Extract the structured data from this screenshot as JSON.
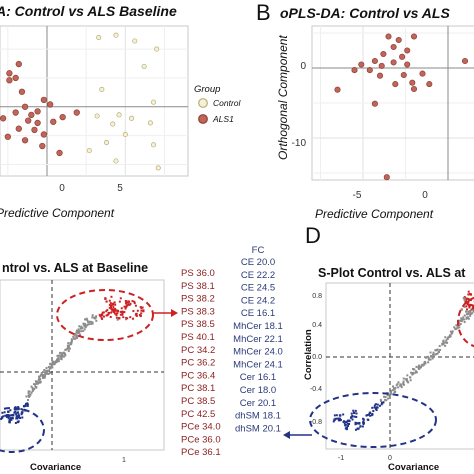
{
  "panels": {
    "A": {
      "letter": "",
      "title": "A: Control vs ALS Baseline",
      "xlabel": "Predictive Component",
      "xticks": [
        "0",
        "5"
      ]
    },
    "B": {
      "letter": "B",
      "title": "oPLS-DA: Control vs ALS",
      "xlabel": "Predictive Component",
      "ylabel": "Orthogonal Component",
      "xticks": [
        "-5",
        "0"
      ],
      "yticks": [
        "0",
        "-10"
      ]
    },
    "C": {
      "title": "ntrol vs. ALS at Baseline",
      "xlabel": "Covariance",
      "xticks": [
        "1"
      ]
    },
    "D": {
      "letter": "D",
      "title": "S-Plot Control vs. ALS at",
      "xlabel": "Covariance",
      "ylabel": "Correlation",
      "xticks": [
        "-1",
        "0"
      ],
      "yticks": [
        "0.8",
        "0.4",
        "0.0",
        "-0.4",
        "-0.8"
      ]
    }
  },
  "legend": {
    "title": "Group",
    "items": [
      "Control",
      "ALS1"
    ]
  },
  "colors": {
    "control_fill": "#f4f1da",
    "control_stroke": "#b8ad72",
    "als_fill": "#c0655a",
    "als_stroke": "#8e3f37",
    "red_accent": "#cc2222",
    "blue_accent": "#223388",
    "splot_gray": "#8c8c8c"
  },
  "lipids": {
    "fc_header": "FC",
    "left": [
      "PS 36.0",
      "PS 38.1",
      "PS 38.2",
      "PS 38.3",
      "PS 38.5",
      "PS 40.1",
      "PC 34.2",
      "PC 36.2",
      "PC 36.4",
      "PC 38.1",
      "PC 38.5",
      "PC 42.5",
      "PCe 34.0",
      "PCe 36.0",
      "PCe 36.1"
    ],
    "right": [
      "CE 20.0",
      "CE 22.2",
      "CE 24.5",
      "CE 24.2",
      "CE 16.1",
      "MhCer 18.1",
      "MhCer 22.1",
      "MhCer 24.0",
      "MhCer 24.1",
      "Cer 16.1",
      "Cer 18.0",
      "Cer 20.1",
      "dhSM 18.1",
      "dhSM 20.1"
    ]
  },
  "chart_data": [
    {
      "type": "scatter",
      "title": "A: Control vs ALS Baseline",
      "xlabel": "Predictive Component",
      "ylabel": "",
      "xlim": [
        -3.0,
        9.0
      ],
      "ylim": [
        -6.0,
        7.0
      ],
      "grid": true,
      "legend_position": "right",
      "series": [
        {
          "name": "Control",
          "points": [
            [
              3.3,
              6.0
            ],
            [
              4.4,
              6.2
            ],
            [
              5.6,
              5.7
            ],
            [
              6.2,
              3.5
            ],
            [
              7.0,
              5.0
            ],
            [
              3.5,
              1.5
            ],
            [
              6.8,
              0.4
            ],
            [
              3.2,
              -0.8
            ],
            [
              4.6,
              -0.7
            ],
            [
              4.2,
              -1.5
            ],
            [
              5.4,
              -1.0
            ],
            [
              6.6,
              -1.4
            ],
            [
              5.0,
              -2.4
            ],
            [
              3.8,
              -3.1
            ],
            [
              6.8,
              -3.3
            ],
            [
              2.7,
              -3.8
            ],
            [
              4.4,
              -4.7
            ],
            [
              7.1,
              -5.3
            ]
          ]
        },
        {
          "name": "ALS1",
          "points": [
            [
              -2.4,
              2.9
            ],
            [
              -1.8,
              3.7
            ],
            [
              -2.4,
              2.3
            ],
            [
              -1.6,
              1.3
            ],
            [
              -1.4,
              0.0
            ],
            [
              -2.0,
              -0.5
            ],
            [
              -2.8,
              -1.0
            ],
            [
              -1.0,
              -0.7
            ],
            [
              -0.6,
              -0.4
            ],
            [
              -0.2,
              0.6
            ],
            [
              0.2,
              0.2
            ],
            [
              -1.2,
              -1.2
            ],
            [
              -0.6,
              -1.4
            ],
            [
              -1.8,
              -1.9
            ],
            [
              -0.8,
              -2.0
            ],
            [
              0.4,
              -1.3
            ],
            [
              -0.2,
              -2.4
            ],
            [
              -1.4,
              -2.9
            ],
            [
              -2.0,
              2.5
            ],
            [
              1.0,
              -0.9
            ],
            [
              -2.5,
              -2.6
            ],
            [
              1.9,
              -0.5
            ],
            [
              -0.3,
              -3.4
            ],
            [
              0.8,
              -4.0
            ]
          ]
        }
      ]
    },
    {
      "type": "scatter",
      "title": "oPLS-DA: Control vs ALS",
      "xlabel": "Predictive Component",
      "ylabel": "Orthogonal Component",
      "xlim": [
        -8.0,
        2.0
      ],
      "ylim": [
        -16.0,
        6.0
      ],
      "grid": true,
      "series": [
        {
          "name": "ALS1",
          "points": [
            [
              -3.5,
              4.5
            ],
            [
              -2.9,
              4.0
            ],
            [
              -2.0,
              4.5
            ],
            [
              -3.2,
              3.0
            ],
            [
              -2.4,
              2.5
            ],
            [
              -3.8,
              2.0
            ],
            [
              -2.7,
              1.6
            ],
            [
              -4.3,
              1.0
            ],
            [
              -5.1,
              0.5
            ],
            [
              -3.9,
              0.3
            ],
            [
              -3.2,
              0.8
            ],
            [
              -2.4,
              0.5
            ],
            [
              -5.5,
              -0.3
            ],
            [
              -4.6,
              -0.3
            ],
            [
              -4.0,
              -1.1
            ],
            [
              -2.6,
              -1.0
            ],
            [
              -1.5,
              -0.8
            ],
            [
              -2.1,
              -2.1
            ],
            [
              -3.1,
              -2.3
            ],
            [
              -1.1,
              -2.3
            ],
            [
              -6.5,
              -3.1
            ],
            [
              -4.3,
              -5.1
            ],
            [
              -3.6,
              -15.6
            ],
            [
              -2.0,
              -3.0
            ],
            [
              1.0,
              1.0
            ]
          ]
        }
      ]
    },
    {
      "type": "scatter",
      "title": "ntrol vs. ALS at Baseline",
      "xlabel": "Covariance",
      "ylabel": "",
      "xlim": [
        -0.98,
        1.4
      ],
      "ylim": [
        -1.0,
        1.0
      ],
      "grid": false,
      "series": [
        {
          "name": "",
          "points": [
            [
              -0.95,
              -0.62
            ],
            [
              -0.86,
              -0.55
            ],
            [
              -0.84,
              -0.66
            ],
            [
              -0.79,
              -0.59
            ],
            [
              -0.74,
              -0.52
            ],
            [
              -0.72,
              -0.67
            ],
            [
              -0.66,
              -0.56
            ],
            [
              -0.6,
              -0.46
            ],
            [
              -0.55,
              -0.36
            ],
            [
              -0.5,
              -0.29
            ],
            [
              -0.45,
              -0.22
            ],
            [
              -0.4,
              -0.17
            ],
            [
              -0.35,
              -0.12
            ],
            [
              -0.3,
              -0.07
            ],
            [
              -0.25,
              -0.03
            ],
            [
              -0.2,
              0.01
            ],
            [
              -0.15,
              0.06
            ],
            [
              -0.1,
              0.1
            ],
            [
              -0.05,
              0.14
            ],
            [
              0.0,
              0.19
            ],
            [
              0.05,
              0.25
            ],
            [
              0.1,
              0.31
            ],
            [
              0.15,
              0.38
            ],
            [
              0.2,
              0.43
            ],
            [
              0.25,
              0.46
            ],
            [
              0.3,
              0.51
            ],
            [
              0.4,
              0.55
            ],
            [
              0.5,
              0.59
            ],
            [
              0.6,
              0.61
            ],
            [
              0.65,
              0.71
            ],
            [
              0.7,
              0.64
            ],
            [
              0.8,
              0.62
            ],
            [
              0.9,
              0.71
            ],
            [
              0.55,
              0.78
            ],
            [
              0.75,
              0.55
            ],
            [
              1.0,
              0.6
            ],
            [
              1.1,
              0.64
            ],
            [
              0.85,
              0.75
            ]
          ]
        }
      ]
    },
    {
      "type": "scatter",
      "title": "S-Plot Control vs. ALS at",
      "xlabel": "Covariance",
      "ylabel": "Correlation",
      "xlim": [
        -1.52,
        1.0
      ],
      "ylim": [
        -0.98,
        0.9
      ],
      "grid": false,
      "series": [
        {
          "name": "",
          "points": [
            [
              -1.38,
              -0.65
            ],
            [
              -1.29,
              -0.6
            ],
            [
              -1.18,
              -0.74
            ],
            [
              -1.14,
              -0.66
            ],
            [
              -1.06,
              -0.57
            ],
            [
              -1.0,
              -0.75
            ],
            [
              -0.91,
              -0.68
            ],
            [
              -0.8,
              -0.57
            ],
            [
              -0.7,
              -0.52
            ],
            [
              -0.6,
              -0.46
            ],
            [
              -0.5,
              -0.37
            ],
            [
              -0.4,
              -0.3
            ],
            [
              -0.3,
              -0.25
            ],
            [
              -0.2,
              -0.19
            ],
            [
              -0.1,
              -0.12
            ],
            [
              0.0,
              -0.07
            ],
            [
              0.1,
              0.0
            ],
            [
              0.2,
              0.07
            ],
            [
              0.3,
              0.14
            ],
            [
              0.4,
              0.21
            ],
            [
              0.5,
              0.29
            ],
            [
              0.6,
              0.38
            ],
            [
              0.7,
              0.47
            ],
            [
              0.8,
              0.55
            ],
            [
              0.9,
              0.62
            ],
            [
              0.75,
              0.71
            ],
            [
              0.85,
              0.77
            ],
            [
              0.8,
              0.51
            ],
            [
              0.95,
              0.66
            ],
            [
              0.7,
              0.6
            ]
          ]
        }
      ]
    }
  ]
}
